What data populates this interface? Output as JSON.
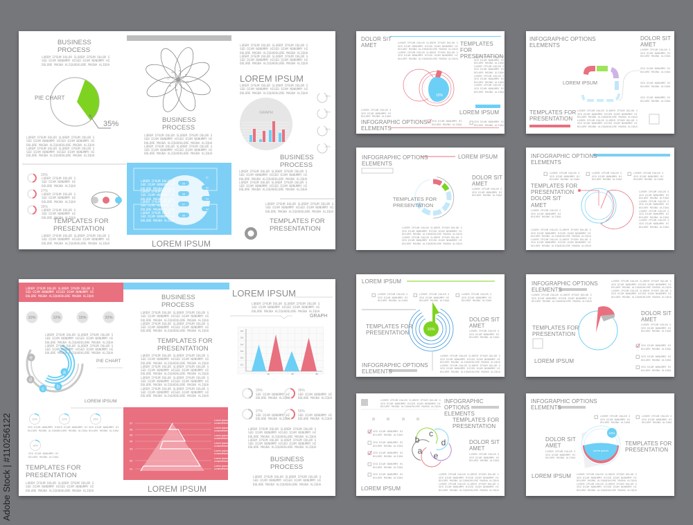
{
  "watermark": {
    "brand": "Adobe Stock",
    "id": "Adobe Stock | #110256122"
  },
  "colors": {
    "red": "#e8707f",
    "blue": "#6ccff6",
    "green": "#7ed321",
    "purple": "#b98fd8",
    "gray": "#8a8a8a",
    "background": "#76777b"
  },
  "filler": {
    "s3": "LOREM IPSUM DOLOR SLOREM IPSUM DOLOR S\nSED DIAM NONUMMY HISED DIAM NONUMMY HI\nDOLORE MAGNA ALIQUADOLORE MAGNA ALIQUA",
    "s6": "LOREM IPSUM DOLOR SLOREM IPSUM DOLOR S\nSED DIAM NONUMMY HISED DIAM NONUMMY HI\nDOLORE MAGNA ALIQUADOLORE MAGNA ALIQUA\nLOREM IPSUM DOLOR SLOREM IPSUM DOLOR S\nSED DIAM NONUMMY HISED DIAM NONUMMY HI\nDOLORE MAGNA ALIQUADOLORE MAGNA ALIQUA",
    "s12": "LOREM IPSUM DOLOR SLOREM IPSUM DOLOR S\nSED DIAM NONUMMY HISED DIAM NONUMMY HI\nDOLORE MAGNA ALIQUADOLORE MAGNA ALIQUA\nLOREM IPSUM DOLOR SLOREM IPSUM DOLOR S\nSED DIAM NONUMMY HISED DIAM NONUMMY HI\nDOLORE MAGNA ALIQUADOLORE MAGNA ALIQUA\nLOREM IPSUM DOLOR SLOREM IPSUM DOLOR S\nSED DIAM NONUMMY HISED DIAM NONUMMY HI\nDOLORE MAGNA ALIQUADOLORE MAGNA ALIQUA\nLOREM IPSUM DOLOR SLOREM IPSUM DOLOR S\nSED DIAM NONUMMY HISED DIAM NONUMMY HI\nDOLORE MAGNA ALIQUADOLORE MAGNA ALIQUA",
    "n3": "LOREM IPSUM DOLOR S\nSED DIAM NONUMMY HI\nDOLORE MAGNA ALIQUA",
    "n12": "LOREM IPSUM DOLOR S\nSED DIAM NONUMMY HI\nDOLORE MAGNA ALIQUA\nLOREM IPSUM DOLOR S\nSED DIAM NONUMMY HI\nDOLORE MAGNA ALIQUA\nLOREM IPSUM DOLOR S\nSED DIAM NONUMMY HI\nDOLORE MAGNA ALIQUA\nLOREM IPSUM DOLOR S\nSED DIAM NONUMMY HI\nDOLORE MAGNA ALIQUA",
    "t2": "SED DIAM NONUMMY HI\nDOLORE MAGNA ALIQUA"
  },
  "slides": [
    {
      "labels": {
        "title_tl": "BUSINESS\nPROCESS",
        "pie_label": "PIE CHART",
        "pie_value": "35%",
        "flower_nums": [
          "01",
          "02",
          "03",
          "04",
          "05",
          "06",
          "07",
          "08"
        ],
        "title_mid": "BUSINESS\nPROCESS",
        "title_right": "LOREM IPSUM",
        "graph_label": "GRAPH",
        "ring_values": [
          "15%",
          "22%",
          "33%",
          "40%"
        ],
        "title_right2": "BUSINESS\nPROCESS",
        "title_br": "TEMPLATES FOR\nPRESENTATION",
        "left_values": [
          "20%",
          "27%",
          "35%"
        ],
        "title_bl": "TEMPLATES FOR\nPRESENTATION",
        "box_nums": [
          "01",
          "02",
          "03",
          "04",
          "05",
          "06",
          "07",
          "08"
        ],
        "title_bottom": "LOREM IPSUM"
      }
    },
    {
      "labels": {
        "stats": [
          "10%",
          "12%",
          "15%",
          "22%"
        ],
        "pie_label": "PIE CHART",
        "letters": [
          "a",
          "b",
          "c",
          "d",
          "e"
        ],
        "lorem_label": "LOREM IPSUM",
        "rings": [
          "10%",
          "12%",
          "15%",
          "16%"
        ],
        "title_bl": "TEMPLATES FOR\nPRESENTATION",
        "title_mid": "BUSINESS\nPROCESS",
        "title_mid2": "TEMPLATES FOR\nPRESENTATION",
        "pyramid_levels": [
          "07",
          "06",
          "05",
          "04",
          "03",
          "02",
          "01"
        ],
        "pyramid_note": "Lorem ipsum\nconsectetuer",
        "title_bottom": "LOREM IPSUM",
        "title_right": "LOREM IPSUM",
        "graph_label": "GRAPH",
        "y_ticks": [
          "0.6",
          "0.5",
          "0.4",
          "0.3",
          "0.2",
          "0.1"
        ],
        "x_ticks": [
          "10",
          "20",
          "30"
        ],
        "graph_peaks": [
          0.4,
          0.55,
          0.3,
          0.5
        ],
        "ring_values": [
          "20%",
          "35%",
          "27%",
          "55%"
        ],
        "title_br": "BUSINESS\nPROCESS"
      }
    },
    {
      "labels": {
        "t1": "DOLOR SIT\nAMET",
        "t2": "TEMPLATES FOR\nPRESENTATION",
        "pct": "10%",
        "t3": "LOREM IPSUM",
        "t4": "INFOGRAPHIC OPTIONS\nELEMENTS"
      }
    },
    {
      "labels": {
        "t1": "INFOGRAPHIC OPTIONS\nELEMENTS",
        "t2": "DOLOR SIT\nAMET",
        "center": "LOREM IPSUM",
        "t3": "TEMPLATES FOR\nPRESENTATION"
      }
    },
    {
      "labels": {
        "t1": "INFOGRAPHIC OPTIONS\nELEMENTS",
        "t2": "LOREM IPSUM",
        "center": "TEMPLATES FOR\nPRESENTATION",
        "t3": "DOLOR SIT\nAMET"
      }
    },
    {
      "labels": {
        "t1": "INFOGRAPHIC OPTIONS\nELEMENTS",
        "t2": "TEMPLATES FOR\nPRESENTATION\nDOLOR SIT\nAMET"
      }
    },
    {
      "labels": {
        "t1": "LOREM IPSUM",
        "t2": "TEMPLATES FOR\nPRESENTATION",
        "pct": "10%",
        "t3": "DOLOR SIT\nAMET",
        "t4": "INFOGRAPHIC OPTIONS\nELEMENTS"
      }
    },
    {
      "labels": {
        "t1": "INFOGRAPHIC OPTIONS\nELEMENTS",
        "t2": "DOLOR SIT\nAMET",
        "t3": "TEMPLATES FOR\nPRESENTATION",
        "t4": "LOREM IPSUM"
      }
    },
    {
      "labels": {
        "t1": "INFOGRAPHIC OPTIONS\nELEMENTS",
        "t2": "TEMPLATES FOR\nPRESENTATION",
        "t3": "DOLOR SIT\nAMET",
        "letters": [
          "a",
          "b",
          "c",
          "d",
          "e"
        ],
        "t4": "LOREM IPSUM"
      }
    },
    {
      "labels": {
        "t1": "INFOGRAPHIC OPTIONS\nELEMENTS",
        "t2": "DOLOR SIT\nAMET",
        "pct": "10%",
        "inner": "lorem ipsum",
        "t3": "TEMPLATES FOR\nPRESENTATION",
        "t4": "LOREM IPSUM"
      }
    }
  ]
}
